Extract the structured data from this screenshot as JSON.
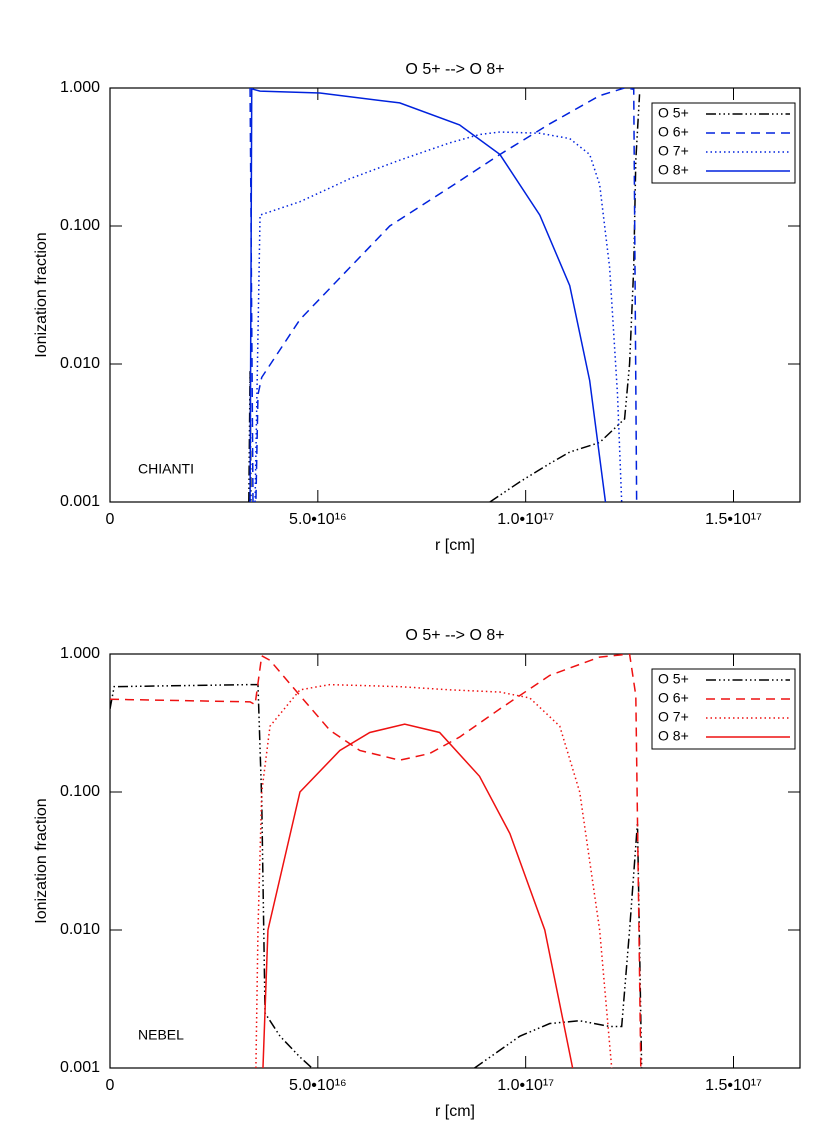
{
  "chart_data": [
    {
      "type": "line",
      "title": "O 5+ --> O 8+",
      "xlabel": "r [cm]",
      "ylabel": "Ionization fraction",
      "annotation": "CHIANTI",
      "yscale": "log",
      "legend": "upper right",
      "xlim": [
        0,
        1.66e+17
      ],
      "ylim": [
        0.001,
        1.0
      ],
      "xticks": [
        {
          "value": 0,
          "label": "0"
        },
        {
          "value": 5e+16,
          "label": "5.0•10¹⁶"
        },
        {
          "value": 1e+17,
          "label": "1.0•10¹⁷"
        },
        {
          "value": 1.5e+17,
          "label": "1.5•10¹⁷"
        }
      ],
      "yticks": [
        {
          "value": 0.001,
          "label": "0.001"
        },
        {
          "value": 0.01,
          "label": "0.010"
        },
        {
          "value": 0.1,
          "label": "0.100"
        },
        {
          "value": 1,
          "label": "1.000"
        }
      ],
      "series": [
        {
          "name": "O 5+",
          "color": "#000000",
          "linestyle": "dash-dot-dot",
          "x": [
            3.34e+16,
            3.37e+16,
            3.39e+16,
            null,
            9.14e+16,
            9.86e+16,
            1.058e+17,
            1.106e+17,
            1.178e+17,
            1.238e+17,
            1.25e+17,
            1.26e+17,
            1.265e+17,
            1.274e+17
          ],
          "values": [
            0.001,
            0.009,
            0.001,
            null,
            0.001,
            0.0014,
            0.0019,
            0.0023,
            0.0027,
            0.004,
            0.01,
            0.05,
            0.3,
            0.9
          ]
        },
        {
          "name": "O 6+",
          "color": "#0022dd",
          "linestyle": "dashed",
          "x": [
            3.37e+16,
            3.44e+16,
            3.51e+16,
            3.56e+16,
            3.65e+16,
            4.57e+16,
            5.77e+16,
            6.73e+16,
            8.17e+16,
            9.38e+16,
            1.058e+17,
            1.178e+17,
            1.238e+17,
            1.26e+17,
            1.267e+17
          ],
          "values": [
            1.0,
            0.001,
            0.001,
            0.006,
            0.008,
            0.021,
            0.05,
            0.1,
            0.19,
            0.33,
            0.55,
            0.88,
            1.0,
            0.98,
            0.001
          ]
        },
        {
          "name": "O 7+",
          "color": "#0022dd",
          "linestyle": "dotted",
          "x": [
            3.49e+16,
            3.61e+16,
            4.57e+16,
            5.77e+16,
            6.97e+16,
            8.17e+16,
            8.89e+16,
            9.38e+16,
            1.034e+17,
            1.106e+17,
            1.154e+17,
            1.178e+17,
            1.202e+17,
            1.221e+17,
            1.231e+17
          ],
          "values": [
            0.001,
            0.12,
            0.15,
            0.22,
            0.3,
            0.4,
            0.46,
            0.48,
            0.47,
            0.43,
            0.33,
            0.2,
            0.05,
            0.006,
            0.001
          ]
        },
        {
          "name": "O 8+",
          "color": "#0022dd",
          "linestyle": "solid",
          "x": [
            3.37e+16,
            3.41e+16,
            3.44e+16,
            3.61e+16,
            5.05e+16,
            6.97e+16,
            8.41e+16,
            9.38e+16,
            1.034e+17,
            1.106e+17,
            1.154e+17,
            1.192e+17
          ],
          "values": [
            0.001,
            1.0,
            0.98,
            0.95,
            0.92,
            0.78,
            0.54,
            0.33,
            0.12,
            0.037,
            0.0076,
            0.001
          ]
        }
      ]
    },
    {
      "type": "line",
      "title": "O 5+ --> O 8+",
      "xlabel": "r [cm]",
      "ylabel": "Ionization fraction",
      "annotation": "NEBEL",
      "yscale": "log",
      "legend": "upper right",
      "xlim": [
        0,
        1.66e+17
      ],
      "ylim": [
        0.001,
        1.0
      ],
      "xticks": [
        {
          "value": 0,
          "label": "0"
        },
        {
          "value": 5e+16,
          "label": "5.0•10¹⁶"
        },
        {
          "value": 1e+17,
          "label": "1.0•10¹⁷"
        },
        {
          "value": 1.5e+17,
          "label": "1.5•10¹⁷"
        }
      ],
      "yticks": [
        {
          "value": 0.001,
          "label": "0.001"
        },
        {
          "value": 0.01,
          "label": "0.010"
        },
        {
          "value": 0.1,
          "label": "0.100"
        },
        {
          "value": 1,
          "label": "1.000"
        }
      ],
      "series": [
        {
          "name": "O 5+",
          "color": "#000000",
          "linestyle": "dash-dot-dot",
          "x": [
            0,
            1000000000000000.0,
            3.37e+16,
            3.56e+16,
            3.65e+16,
            3.73e+16,
            4.09e+16,
            4.57e+16,
            4.86e+16,
            null,
            8.77e+16,
            9.86e+16,
            1.058e+17,
            1.13e+17,
            1.202e+17,
            1.231e+17,
            1.25e+17,
            1.269e+17,
            1.279e+17
          ],
          "values": [
            0.4,
            0.58,
            0.6,
            0.6,
            0.087,
            0.0025,
            0.0017,
            0.0012,
            0.001,
            null,
            0.001,
            0.0017,
            0.0021,
            0.0022,
            0.002,
            0.002,
            0.01,
            0.06,
            0.001
          ]
        },
        {
          "name": "O 6+",
          "color": "#ee1111",
          "linestyle": "dashed",
          "x": [
            0,
            3.37e+16,
            3.49e+16,
            3.65e+16,
            3.85e+16,
            4.57e+16,
            5.29e+16,
            6.01e+16,
            6.97e+16,
            7.69e+16,
            8.41e+16,
            9.38e+16,
            1.058e+17,
            1.178e+17,
            1.25e+17,
            1.265e+17,
            1.277e+17
          ],
          "values": [
            0.47,
            0.45,
            0.43,
            0.97,
            0.9,
            0.5,
            0.28,
            0.2,
            0.17,
            0.19,
            0.25,
            0.4,
            0.7,
            0.95,
            1.0,
            0.5,
            0.001
          ]
        },
        {
          "name": "O 7+",
          "color": "#ee1111",
          "linestyle": "dotted",
          "x": [
            3.51e+16,
            3.56e+16,
            3.65e+16,
            3.85e+16,
            4.57e+16,
            5.29e+16,
            6.97e+16,
            8.17e+16,
            9.38e+16,
            1.01e+17,
            1.082e+17,
            1.13e+17,
            1.178e+17,
            1.207e+17
          ],
          "values": [
            0.001,
            0.01,
            0.1,
            0.3,
            0.55,
            0.6,
            0.58,
            0.55,
            0.53,
            0.48,
            0.3,
            0.1,
            0.01,
            0.001
          ]
        },
        {
          "name": "O 8+",
          "color": "#ee1111",
          "linestyle": "solid",
          "x": [
            3.68e+16,
            3.8e+16,
            4.57e+16,
            5.53e+16,
            6.25e+16,
            7.09e+16,
            7.93e+16,
            8.89e+16,
            9.62e+16,
            1.046e+17,
            1.113e+17
          ],
          "values": [
            0.001,
            0.01,
            0.1,
            0.2,
            0.27,
            0.31,
            0.27,
            0.13,
            0.05,
            0.01,
            0.001
          ]
        }
      ]
    }
  ]
}
